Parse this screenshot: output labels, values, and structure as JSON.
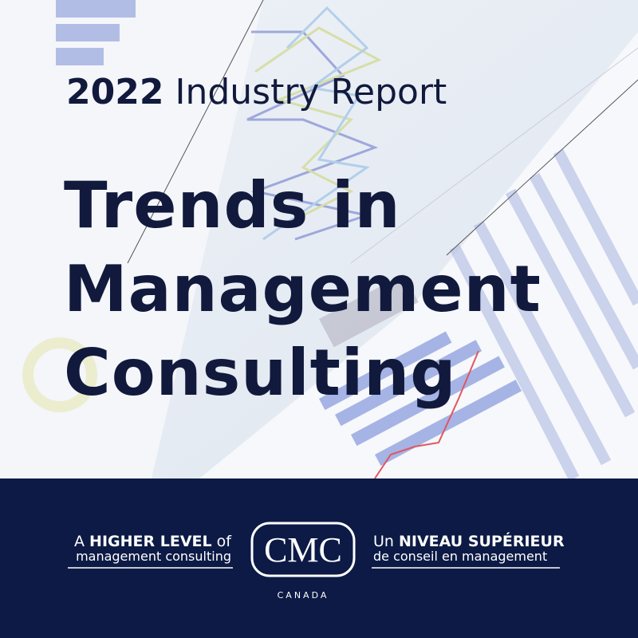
{
  "header": {
    "year": "2022",
    "subtitle": "Industry Report"
  },
  "title": {
    "lines": [
      "Trends in",
      "Management",
      "Consulting"
    ]
  },
  "footer": {
    "left": {
      "line1": [
        "A",
        "HIGHER LEVEL",
        "of"
      ],
      "line2": "management consulting"
    },
    "logo": {
      "mark": "CMC",
      "country": "CANADA"
    },
    "right": {
      "line1": [
        "Un",
        "NIVEAU SUPÉRIEUR"
      ],
      "line2": "de conseil en management"
    }
  }
}
